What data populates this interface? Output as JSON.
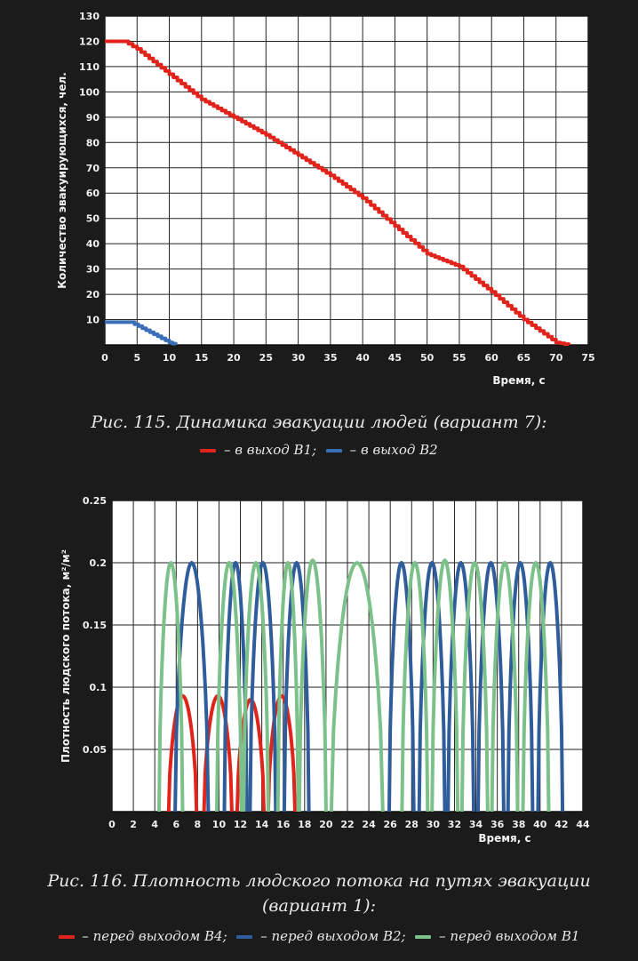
{
  "chart_data": [
    {
      "type": "line",
      "title": "",
      "xlabel": "Время, с",
      "ylabel": "Количество эвакуирующихся, чел.",
      "xlim": [
        0,
        75
      ],
      "ylim": [
        0,
        130
      ],
      "xticks": [
        "0",
        "5",
        "10",
        "15",
        "20",
        "25",
        "30",
        "35",
        "40",
        "45",
        "50",
        "55",
        "60",
        "65",
        "70",
        "75"
      ],
      "yticks": [
        "120",
        "110",
        "100",
        "90",
        "80",
        "70",
        "60",
        "50",
        "40",
        "30",
        "20",
        "10"
      ],
      "ytop_label": "130",
      "grid": true,
      "caption": "Рис. 115. Динамика эвакуации людей (вариант 7):",
      "legend": [
        {
          "marker": "—",
          "text": " – в выход В1;",
          "color": "#e0241c"
        },
        {
          "marker": "—",
          "text": " – в выход В2",
          "color": "#3a6fb8"
        }
      ],
      "series": [
        {
          "color": "#e0241c",
          "x": [
            0,
            3,
            5,
            10,
            15,
            20,
            25,
            30,
            35,
            40,
            45,
            50,
            55,
            60,
            65,
            70,
            72
          ],
          "values": [
            120,
            120,
            117,
            107,
            97,
            90,
            83,
            75,
            67,
            58,
            47,
            36,
            31,
            21,
            10,
            1,
            0
          ]
        },
        {
          "color": "#3a6fb8",
          "x": [
            0,
            4,
            7,
            10,
            11
          ],
          "values": [
            9,
            9,
            5,
            1,
            0
          ]
        }
      ]
    },
    {
      "type": "line",
      "title": "",
      "xlabel": "Время, с",
      "ylabel": "Плотность людского потока, м²/м²",
      "xlim": [
        0,
        44
      ],
      "ylim": [
        0,
        0.25
      ],
      "xticks": [
        "0",
        "2",
        "4",
        "6",
        "8",
        "10",
        "12",
        "14",
        "16",
        "18",
        "20",
        "22",
        "24",
        "26",
        "28",
        "30",
        "32",
        "34",
        "36",
        "38",
        "40",
        "42",
        "44"
      ],
      "yticks": [
        "0.25",
        "0.2",
        "0.15",
        "0.1",
        "0.05"
      ],
      "grid": true,
      "caption_line1": "Рис. 116. Плотность людского потока на путях эвакуации",
      "caption_line2": "(вариант 1):",
      "legend": [
        {
          "marker": "—",
          "text": " – перед выходом В4;",
          "color": "#e0241c"
        },
        {
          "marker": "—",
          "text": " – перед выходом В2;",
          "color": "#2f5d9c"
        },
        {
          "marker": "—",
          "text": " – перед выходом В1",
          "color": "#7cc08a"
        }
      ],
      "series": [
        {
          "color": "#e0241c",
          "pulses": [
            [
              5.3,
              7.9,
              0.093
            ],
            [
              8.6,
              11.2,
              0.093
            ],
            [
              11.7,
              14.2,
              0.09
            ],
            [
              14.6,
              17.1,
              0.093
            ]
          ]
        },
        {
          "color": "#2f5d9c",
          "pulses": [
            [
              5.9,
              9.0,
              0.2
            ],
            [
              10.5,
              12.6,
              0.2
            ],
            [
              12.9,
              15.3,
              0.2
            ],
            [
              16.1,
              18.4,
              0.2
            ],
            [
              25.9,
              28.2,
              0.2
            ],
            [
              28.7,
              31.1,
              0.2
            ],
            [
              31.4,
              33.8,
              0.2
            ],
            [
              34.2,
              36.6,
              0.2
            ],
            [
              37.0,
              39.3,
              0.2
            ],
            [
              39.8,
              42.1,
              0.2
            ]
          ]
        },
        {
          "color": "#7cc08a",
          "pulses": [
            [
              4.4,
              6.6,
              0.2
            ],
            [
              9.8,
              12.1,
              0.2
            ],
            [
              12.3,
              14.6,
              0.2
            ],
            [
              15.5,
              17.4,
              0.2
            ],
            [
              17.5,
              20.0,
              0.202
            ],
            [
              20.5,
              25.3,
              0.2
            ],
            [
              27.1,
              29.5,
              0.2
            ],
            [
              29.9,
              32.3,
              0.202
            ],
            [
              32.7,
              35.1,
              0.2
            ],
            [
              35.5,
              37.9,
              0.2
            ],
            [
              38.4,
              40.8,
              0.2
            ]
          ]
        }
      ]
    }
  ]
}
